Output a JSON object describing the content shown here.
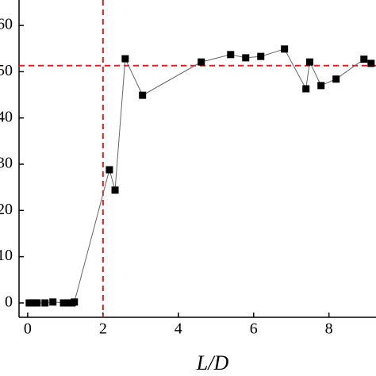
{
  "chart_data": {
    "type": "line",
    "x_label": "L/D",
    "x": [
      0.04,
      0.15,
      0.25,
      0.46,
      0.67,
      0.95,
      1.07,
      1.18,
      1.24,
      2.17,
      2.32,
      2.59,
      3.05,
      4.61,
      5.39,
      5.79,
      6.19,
      6.82,
      7.39,
      7.49,
      7.79,
      8.19,
      8.93,
      9.12
    ],
    "series": [
      {
        "color": "#000000",
        "values": [
          0,
          0,
          0,
          0,
          0.2,
          0,
          0,
          0,
          0.2,
          28.8,
          24.4,
          52.8,
          44.9,
          52.1,
          53.7,
          53,
          53.3,
          54.9,
          46.3,
          52.1,
          47,
          48.4,
          52.7,
          51.8
        ]
      }
    ],
    "xlim": [
      -0.23,
      9.25
    ],
    "xticks": [
      0,
      2,
      4,
      6,
      8
    ],
    "ylim": [
      -3.1,
      65.5
    ],
    "yticks": [
      0,
      10,
      20,
      30,
      40,
      50,
      60
    ],
    "reference_lines": {
      "x": 2,
      "y": 51.3,
      "color": "#e02020"
    }
  }
}
